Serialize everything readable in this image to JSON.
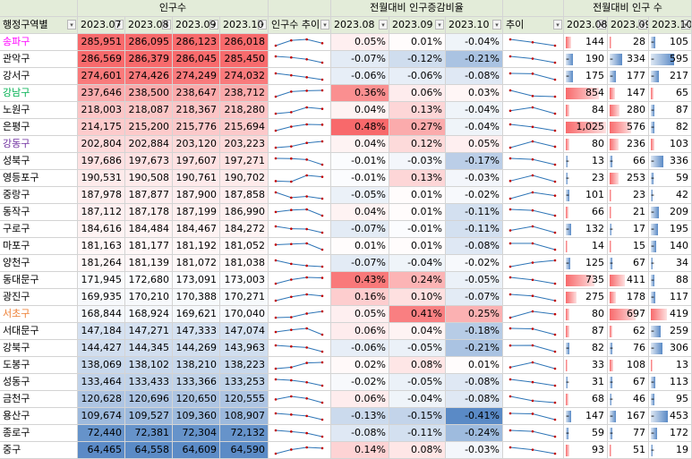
{
  "headers": {
    "row1": {
      "population": "인구수",
      "pct": "전월대비 인구증감비율",
      "diff": "전월대비 인구 수"
    },
    "district": "행정구역별",
    "months": [
      "2023.07",
      "2023.08",
      "2023.09",
      "2023.10"
    ],
    "months_short": [
      "2023.08",
      "2023.09",
      "2023.10"
    ],
    "trend1": "인구수 추이",
    "trend2": "추이"
  },
  "colors": {
    "gangnam_green": "#00b050",
    "magenta": "#ff00ff",
    "purple": "#7030a0",
    "orange": "#ed7d31",
    "sparkline": "#2e75b6",
    "marker": "#c00000"
  },
  "rows": [
    {
      "name": "송파구",
      "color": "#ff00ff",
      "pop": [
        285951,
        286095,
        286123,
        286018
      ],
      "pct": [
        0.05,
        0.01,
        -0.04
      ],
      "diff": [
        144,
        28,
        -105
      ]
    },
    {
      "name": "관악구",
      "color": "",
      "pop": [
        286569,
        286379,
        286045,
        285450
      ],
      "pct": [
        -0.07,
        -0.12,
        -0.21
      ],
      "diff": [
        -190,
        -334,
        -595
      ]
    },
    {
      "name": "강서구",
      "color": "",
      "pop": [
        274601,
        274426,
        274249,
        274032
      ],
      "pct": [
        -0.06,
        -0.06,
        -0.08
      ],
      "diff": [
        -175,
        -177,
        -217
      ]
    },
    {
      "name": "강남구",
      "color": "#00b050",
      "pop": [
        237646,
        238500,
        238647,
        238712
      ],
      "pct": [
        0.36,
        0.06,
        0.03
      ],
      "diff": [
        854,
        147,
        65
      ]
    },
    {
      "name": "노원구",
      "color": "",
      "pop": [
        218003,
        218087,
        218367,
        218280
      ],
      "pct": [
        0.04,
        0.13,
        -0.04
      ],
      "diff": [
        84,
        280,
        -87
      ]
    },
    {
      "name": "은평구",
      "color": "",
      "pop": [
        214175,
        215200,
        215776,
        215694
      ],
      "pct": [
        0.48,
        0.27,
        -0.04
      ],
      "diff": [
        1025,
        576,
        -82
      ]
    },
    {
      "name": "강동구",
      "color": "#7030a0",
      "pop": [
        202804,
        202884,
        203120,
        203223
      ],
      "pct": [
        0.04,
        0.12,
        0.05
      ],
      "diff": [
        80,
        236,
        103
      ]
    },
    {
      "name": "성북구",
      "color": "",
      "pop": [
        197686,
        197673,
        197607,
        197271
      ],
      "pct": [
        -0.01,
        -0.03,
        -0.17
      ],
      "diff": [
        -13,
        -66,
        -336
      ]
    },
    {
      "name": "영등포구",
      "color": "",
      "pop": [
        190531,
        190508,
        190761,
        190702
      ],
      "pct": [
        -0.01,
        0.13,
        -0.03
      ],
      "diff": [
        -23,
        253,
        -59
      ]
    },
    {
      "name": "중랑구",
      "color": "",
      "pop": [
        187978,
        187877,
        187900,
        187858
      ],
      "pct": [
        -0.05,
        0.01,
        -0.02
      ],
      "diff": [
        -101,
        23,
        -42
      ]
    },
    {
      "name": "동작구",
      "color": "",
      "pop": [
        187112,
        187178,
        187199,
        186990
      ],
      "pct": [
        0.04,
        0.01,
        -0.11
      ],
      "diff": [
        66,
        21,
        -209
      ]
    },
    {
      "name": "구로구",
      "color": "",
      "pop": [
        184616,
        184484,
        184467,
        184272
      ],
      "pct": [
        -0.07,
        -0.01,
        -0.11
      ],
      "diff": [
        -132,
        -17,
        -195
      ]
    },
    {
      "name": "마포구",
      "color": "",
      "pop": [
        181163,
        181177,
        181192,
        181052
      ],
      "pct": [
        0.01,
        0.01,
        -0.08
      ],
      "diff": [
        14,
        15,
        -140
      ]
    },
    {
      "name": "양천구",
      "color": "",
      "pop": [
        181264,
        181139,
        181072,
        181038
      ],
      "pct": [
        -0.07,
        -0.04,
        -0.02
      ],
      "diff": [
        -125,
        -67,
        -34
      ]
    },
    {
      "name": "동대문구",
      "color": "",
      "pop": [
        171945,
        172680,
        173091,
        173003
      ],
      "pct": [
        0.43,
        0.24,
        -0.05
      ],
      "diff": [
        735,
        411,
        -88
      ]
    },
    {
      "name": "광진구",
      "color": "",
      "pop": [
        169935,
        170210,
        170388,
        170271
      ],
      "pct": [
        0.16,
        0.1,
        -0.07
      ],
      "diff": [
        275,
        178,
        -117
      ]
    },
    {
      "name": "서초구",
      "color": "#ed7d31",
      "pop": [
        168844,
        168924,
        169621,
        170040
      ],
      "pct": [
        0.05,
        0.41,
        0.25
      ],
      "diff": [
        80,
        697,
        419
      ]
    },
    {
      "name": "서대문구",
      "color": "",
      "pop": [
        147184,
        147271,
        147333,
        147074
      ],
      "pct": [
        0.06,
        0.04,
        -0.18
      ],
      "diff": [
        87,
        62,
        -259
      ]
    },
    {
      "name": "강북구",
      "color": "",
      "pop": [
        144427,
        144345,
        144269,
        143963
      ],
      "pct": [
        -0.06,
        -0.05,
        -0.21
      ],
      "diff": [
        -82,
        -76,
        -306
      ]
    },
    {
      "name": "도봉구",
      "color": "",
      "pop": [
        138069,
        138102,
        138210,
        138223
      ],
      "pct": [
        0.02,
        0.08,
        0.01
      ],
      "diff": [
        33,
        108,
        13
      ]
    },
    {
      "name": "성동구",
      "color": "",
      "pop": [
        133464,
        133433,
        133366,
        133253
      ],
      "pct": [
        -0.02,
        -0.05,
        -0.08
      ],
      "diff": [
        -31,
        -67,
        -113
      ]
    },
    {
      "name": "금천구",
      "color": "",
      "pop": [
        120628,
        120696,
        120650,
        120555
      ],
      "pct": [
        0.06,
        -0.04,
        -0.08
      ],
      "diff": [
        68,
        -46,
        -95
      ]
    },
    {
      "name": "용산구",
      "color": "",
      "pop": [
        109674,
        109527,
        109360,
        108907
      ],
      "pct": [
        -0.13,
        -0.15,
        -0.41
      ],
      "diff": [
        -147,
        -167,
        -453
      ]
    },
    {
      "name": "종로구",
      "color": "",
      "pop": [
        72440,
        72381,
        72304,
        72132
      ],
      "pct": [
        -0.08,
        -0.11,
        -0.24
      ],
      "diff": [
        -59,
        -77,
        -172
      ]
    },
    {
      "name": "중구",
      "color": "",
      "pop": [
        64465,
        64558,
        64609,
        64590
      ],
      "pct": [
        0.14,
        0.08,
        -0.03
      ],
      "diff": [
        93,
        51,
        -19
      ]
    }
  ]
}
